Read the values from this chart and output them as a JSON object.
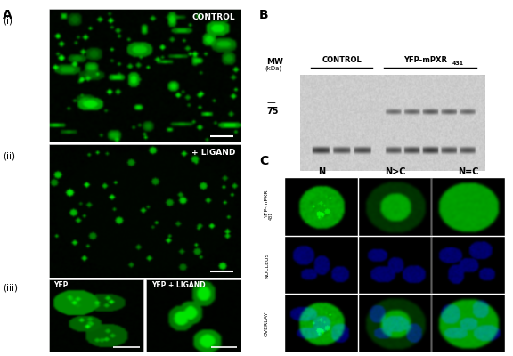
{
  "panel_A_label": "A",
  "panel_B_label": "B",
  "panel_C_label": "C",
  "panel_i_label": "(i)",
  "panel_ii_label": "(ii)",
  "panel_iii_label": "(iii)",
  "control_text": "CONTROL",
  "ligand_text": "+ LIGAND",
  "yfp_text": "YFP",
  "yfp_ligand_text": "YFP + LIGAND",
  "MW_label": "MW",
  "MW_unit": "(kDa)",
  "mw_value": "75",
  "control_col_label": "CONTROL",
  "yfp_col_label": "YFP-mPXR",
  "yfp_subscript": "431",
  "N_label": "N",
  "NC_gt_label": "N>C",
  "NC_eq_label": "N=C",
  "row1_label": "YFP-mPXR",
  "row1_subscript": "431",
  "row2_label": "NUCLEUS",
  "row3_label": "OVERLAY"
}
